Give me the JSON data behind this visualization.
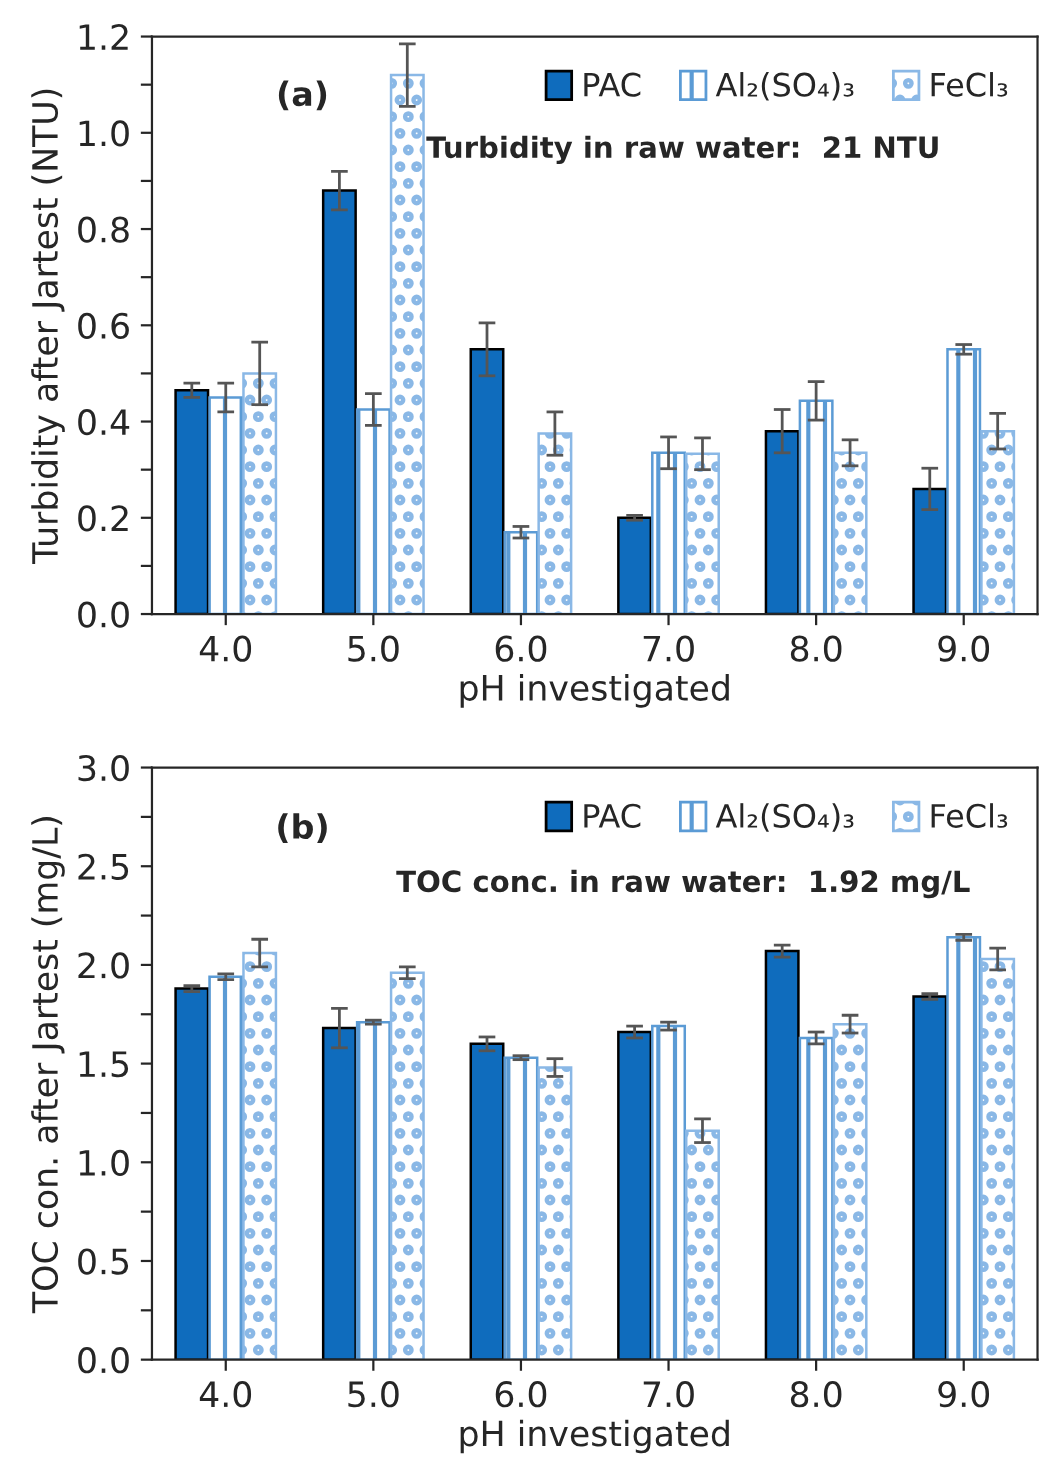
{
  "chart_data": [
    {
      "type": "bar",
      "xlabel": "pH investigated",
      "ylabel": "Turbidity after Jartest (NTU)",
      "categories": [
        "4.0",
        "5.0",
        "6.0",
        "7.0",
        "8.0",
        "9.0"
      ],
      "series": [
        {
          "name": "PAC",
          "color": "#0f6cbd",
          "values": [
            0.465,
            0.88,
            0.55,
            0.2,
            0.38,
            0.26
          ],
          "errors": [
            0.015,
            0.04,
            0.055,
            0.005,
            0.045,
            0.043
          ]
        },
        {
          "name": "Al₂(SO₄)₃",
          "color": "#5b9bd5",
          "values": [
            0.45,
            0.425,
            0.17,
            0.335,
            0.443,
            0.55
          ],
          "errors": [
            0.03,
            0.033,
            0.012,
            0.033,
            0.04,
            0.01
          ]
        },
        {
          "name": "FeCl₃",
          "color": "#8ab8e6",
          "values": [
            0.5,
            1.12,
            0.375,
            0.333,
            0.335,
            0.38
          ],
          "errors": [
            0.065,
            0.065,
            0.045,
            0.033,
            0.027,
            0.037
          ]
        }
      ],
      "ylim": [
        0,
        1.2
      ],
      "yticks": [
        {
          "value": 0,
          "label": "0.0"
        },
        {
          "value": 0.1,
          "label": null
        },
        {
          "value": 0.2,
          "label": "0.2"
        },
        {
          "value": 0.3,
          "label": null
        },
        {
          "value": 0.4,
          "label": "0.4"
        },
        {
          "value": 0.5,
          "label": null
        },
        {
          "value": 0.6,
          "label": "0.6"
        },
        {
          "value": 0.7,
          "label": null
        },
        {
          "value": 0.8,
          "label": "0.8"
        },
        {
          "value": 0.9,
          "label": null
        },
        {
          "value": 1.0,
          "label": "1.0"
        },
        {
          "value": 1.1,
          "label": null
        },
        {
          "value": 1.2,
          "label": "1.2"
        }
      ],
      "annotations": [
        "(a)",
        "Turbidity in raw water:  21 NTU"
      ],
      "legend": "top right",
      "grid": false
    },
    {
      "type": "bar",
      "xlabel": "pH investigated",
      "ylabel": "TOC con. after Jartest (mg/L)",
      "categories": [
        "4.0",
        "5.0",
        "6.0",
        "7.0",
        "8.0",
        "9.0"
      ],
      "series": [
        {
          "name": "PAC",
          "color": "#0f6cbd",
          "values": [
            1.88,
            1.68,
            1.6,
            1.66,
            2.07,
            1.84
          ],
          "errors": [
            0.015,
            0.1,
            0.035,
            0.03,
            0.03,
            0.015
          ]
        },
        {
          "name": "Al₂(SO₄)₃",
          "color": "#5b9bd5",
          "values": [
            1.94,
            1.71,
            1.53,
            1.69,
            1.63,
            2.14
          ],
          "errors": [
            0.015,
            0.01,
            0.01,
            0.02,
            0.03,
            0.015
          ]
        },
        {
          "name": "FeCl₃",
          "color": "#8ab8e6",
          "values": [
            2.06,
            1.96,
            1.48,
            1.16,
            1.7,
            2.03
          ],
          "errors": [
            0.07,
            0.03,
            0.045,
            0.06,
            0.045,
            0.055
          ]
        }
      ],
      "ylim": [
        0,
        3.0
      ],
      "yticks": [
        {
          "value": 0,
          "label": "0.0"
        },
        {
          "value": 0.25,
          "label": null
        },
        {
          "value": 0.5,
          "label": "0.5"
        },
        {
          "value": 0.75,
          "label": null
        },
        {
          "value": 1.0,
          "label": "1.0"
        },
        {
          "value": 1.25,
          "label": null
        },
        {
          "value": 1.5,
          "label": "1.5"
        },
        {
          "value": 1.75,
          "label": null
        },
        {
          "value": 2.0,
          "label": "2.0"
        },
        {
          "value": 2.25,
          "label": null
        },
        {
          "value": 2.5,
          "label": "2.5"
        },
        {
          "value": 2.75,
          "label": null
        },
        {
          "value": 3.0,
          "label": "3.0"
        }
      ],
      "annotations": [
        "(b)",
        "TOC conc. in raw water:  1.92 mg/L"
      ],
      "legend": "top right",
      "grid": false
    }
  ]
}
